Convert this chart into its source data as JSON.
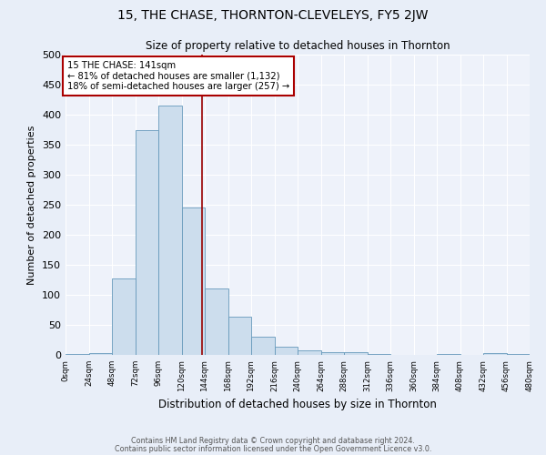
{
  "title": "15, THE CHASE, THORNTON-CLEVELEYS, FY5 2JW",
  "subtitle": "Size of property relative to detached houses in Thornton",
  "xlabel": "Distribution of detached houses by size in Thornton",
  "ylabel": "Number of detached properties",
  "bar_edges": [
    0,
    24,
    48,
    72,
    96,
    120,
    144,
    168,
    192,
    216,
    240,
    264,
    288,
    312,
    336,
    360,
    384,
    408,
    432,
    456,
    480
  ],
  "bar_heights": [
    2,
    3,
    128,
    375,
    415,
    245,
    110,
    63,
    30,
    14,
    8,
    5,
    5,
    1,
    0,
    0,
    2,
    0,
    3,
    1
  ],
  "bar_color": "#ccdded",
  "bar_edge_color": "#6699bb",
  "vline_x": 141,
  "vline_color": "#990000",
  "annotation_title": "15 THE CHASE: 141sqm",
  "annotation_line1": "← 81% of detached houses are smaller (1,132)",
  "annotation_line2": "18% of semi-detached houses are larger (257) →",
  "annotation_box_color": "#aa0000",
  "xlim": [
    0,
    480
  ],
  "ylim": [
    0,
    500
  ],
  "yticks": [
    0,
    50,
    100,
    150,
    200,
    250,
    300,
    350,
    400,
    450,
    500
  ],
  "xtick_labels": [
    "0sqm",
    "24sqm",
    "48sqm",
    "72sqm",
    "96sqm",
    "120sqm",
    "144sqm",
    "168sqm",
    "192sqm",
    "216sqm",
    "240sqm",
    "264sqm",
    "288sqm",
    "312sqm",
    "336sqm",
    "360sqm",
    "384sqm",
    "408sqm",
    "432sqm",
    "456sqm",
    "480sqm"
  ],
  "footnote1": "Contains HM Land Registry data © Crown copyright and database right 2024.",
  "footnote2": "Contains public sector information licensed under the Open Government Licence v3.0.",
  "bg_color": "#e8eef8",
  "plot_bg_color": "#eef2fa",
  "grid_color": "#ffffff"
}
